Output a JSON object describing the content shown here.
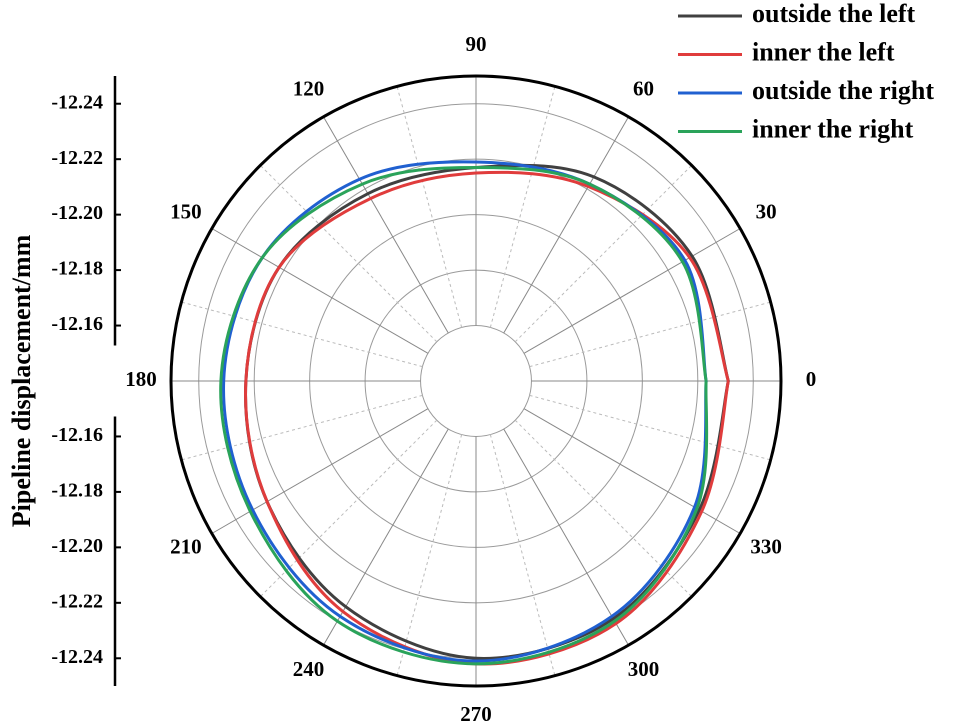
{
  "chart_data": {
    "type": "polar",
    "y_label": "Pipeline displacement/mm",
    "theta": [
      0,
      30,
      60,
      90,
      120,
      150,
      180,
      210,
      240,
      270,
      300,
      330,
      360
    ],
    "thetaticks": [
      0,
      30,
      60,
      90,
      120,
      150,
      180,
      210,
      240,
      270,
      300,
      330
    ],
    "rlim": [
      -12.14,
      -12.25
    ],
    "rticks": [
      -12.16,
      -12.18,
      {
        "value": -12.2,
        "label": "-12.20"
      },
      -12.22,
      -12.24
    ],
    "grid": true,
    "legend": "top-right",
    "series": [
      {
        "name": "outside the left",
        "color": "#404040",
        "values": [
          -12.231,
          -12.23,
          -12.225,
          -12.217,
          -12.218,
          -12.222,
          -12.223,
          -12.227,
          -12.234,
          -12.24,
          -12.239,
          -12.233,
          -12.231
        ]
      },
      {
        "name": "inner the left",
        "color": "#e03c3c",
        "values": [
          -12.231,
          -12.229,
          -12.221,
          -12.215,
          -12.216,
          -12.222,
          -12.223,
          -12.227,
          -12.236,
          -12.242,
          -12.241,
          -12.234,
          -12.231
        ]
      },
      {
        "name": "outside the right",
        "color": "#2060d0",
        "values": [
          -12.223,
          -12.227,
          -12.222,
          -12.219,
          -12.224,
          -12.229,
          -12.231,
          -12.233,
          -12.238,
          -12.241,
          -12.238,
          -12.231,
          -12.223
        ]
      },
      {
        "name": "inner the right",
        "color": "#2aa35a",
        "values": [
          -12.223,
          -12.226,
          -12.222,
          -12.217,
          -12.222,
          -12.229,
          -12.232,
          -12.234,
          -12.24,
          -12.242,
          -12.24,
          -12.232,
          -12.223
        ]
      }
    ]
  }
}
